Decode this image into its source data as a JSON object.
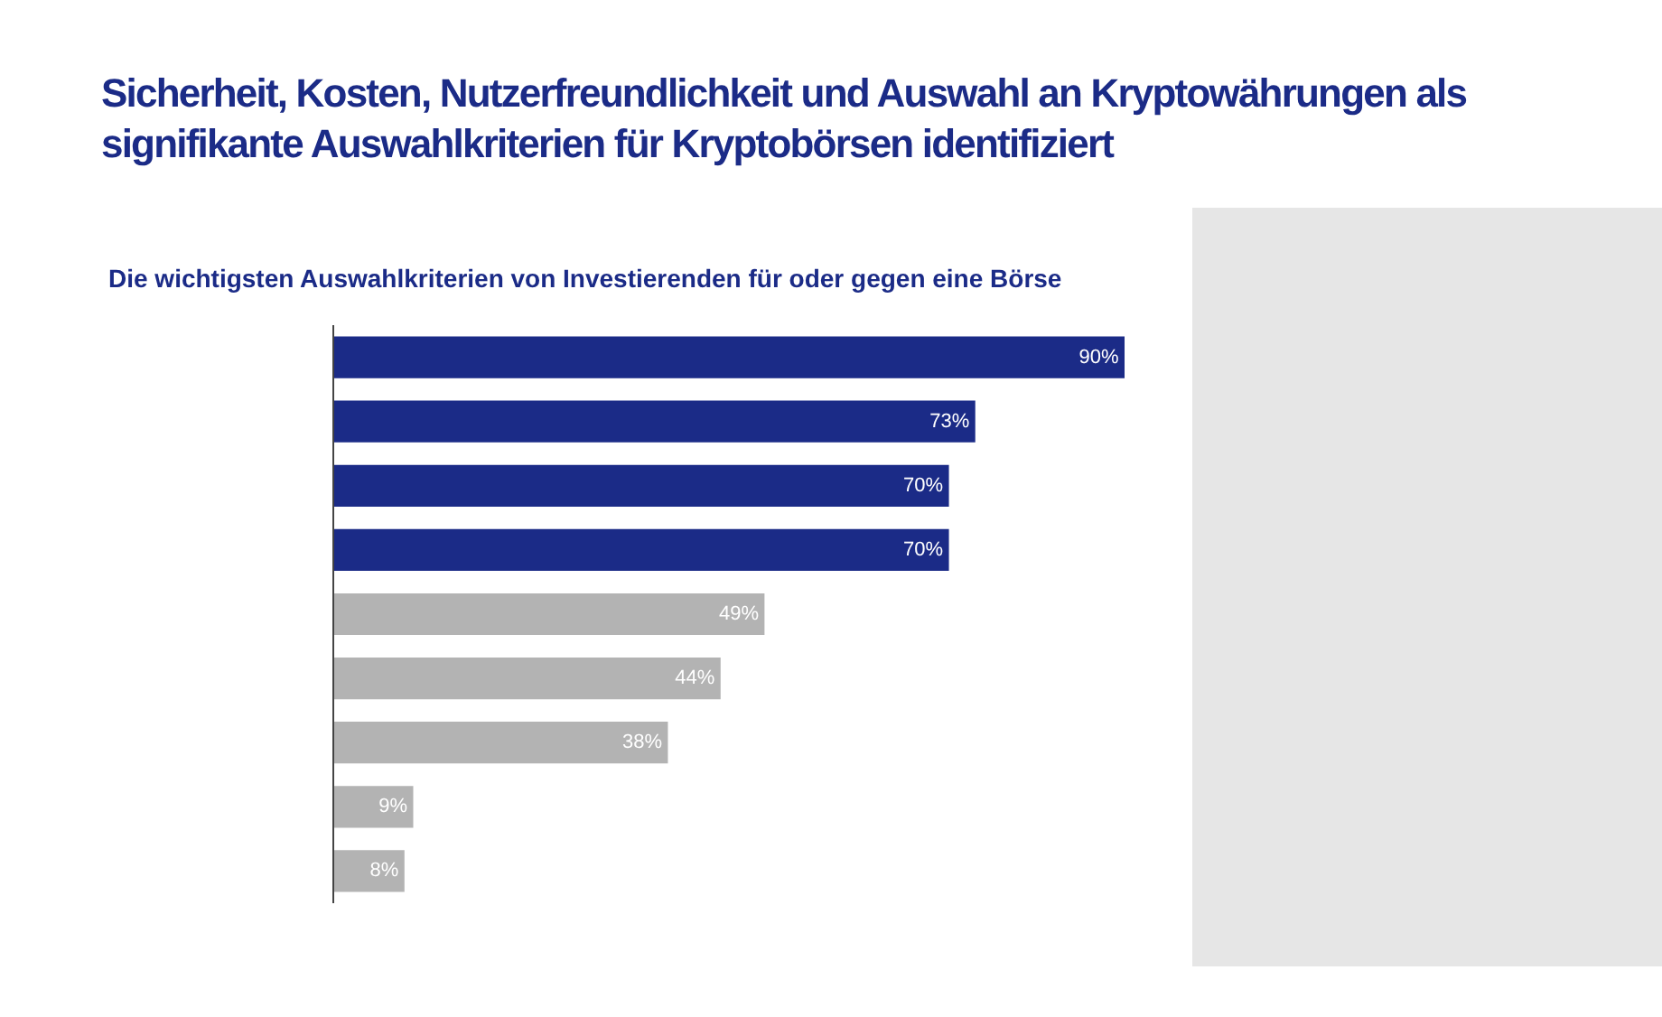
{
  "chart_data": {
    "type": "bar",
    "orientation": "horizontal",
    "title": "Sicherheit, Kosten, Nutzerfreundlichkeit und Auswahl an Kryptowährungen als signifikante Auswahlkriterien für Kryptobörsen identifiziert",
    "subtitle": "Die wichtigsten Auswahlkriterien von Investierenden für oder gegen eine Börse",
    "categories": [
      null,
      null,
      null,
      null,
      null,
      null,
      null,
      null,
      null
    ],
    "values": [
      90,
      73,
      70,
      70,
      49,
      44,
      38,
      9,
      8
    ],
    "colors": [
      "#1b2b87",
      "#1b2b87",
      "#1b2b87",
      "#1b2b87",
      "#b3b3b3",
      "#b3b3b3",
      "#b3b3b3",
      "#b3b3b3",
      "#b3b3b3"
    ],
    "value_labels": [
      "90%",
      "73%",
      "70%",
      "70%",
      "49%",
      "44%",
      "38%",
      "9%",
      "8%"
    ],
    "grid": false
  }
}
